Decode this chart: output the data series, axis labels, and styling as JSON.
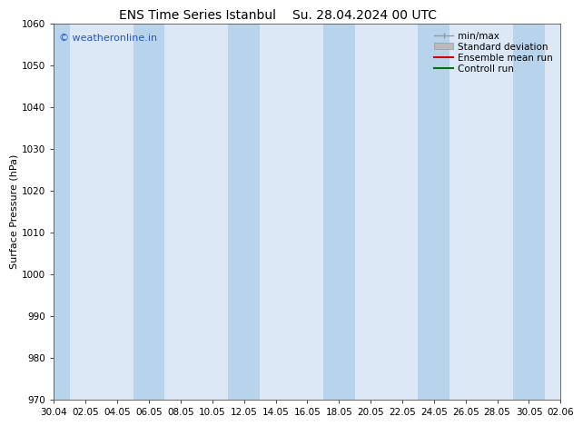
{
  "title1": "ENS Time Series Istanbul",
  "title2": "Su. 28.04.2024 00 UTC",
  "ylabel": "Surface Pressure (hPa)",
  "ymin": 970,
  "ymax": 1060,
  "ytick_step": 10,
  "watermark": "© weatheronline.in",
  "watermark_color": "#2255cc",
  "bg_color": "#ffffff",
  "plot_bg_color": "#dce8f5",
  "band_color_dark": "#b8d4ec",
  "band_color_light": "#dce8f5",
  "xtick_labels": [
    "30.04",
    "02.05",
    "04.05",
    "06.05",
    "08.05",
    "10.05",
    "12.05",
    "14.05",
    "16.05",
    "18.05",
    "20.05",
    "22.05",
    "24.05",
    "26.05",
    "28.05",
    "30.05",
    "02.06"
  ],
  "legend_items": [
    {
      "label": "min/max",
      "color": "#999999",
      "lw": 1.0
    },
    {
      "label": "Standard deviation",
      "color": "#bbbbbb",
      "lw": 5
    },
    {
      "label": "Ensemble mean run",
      "color": "#dd0000",
      "lw": 1.5
    },
    {
      "label": "Controll run",
      "color": "#007700",
      "lw": 1.5
    }
  ],
  "title_fontsize": 10,
  "ylabel_fontsize": 8,
  "tick_fontsize": 7.5,
  "watermark_fontsize": 8,
  "legend_fontsize": 7.5
}
